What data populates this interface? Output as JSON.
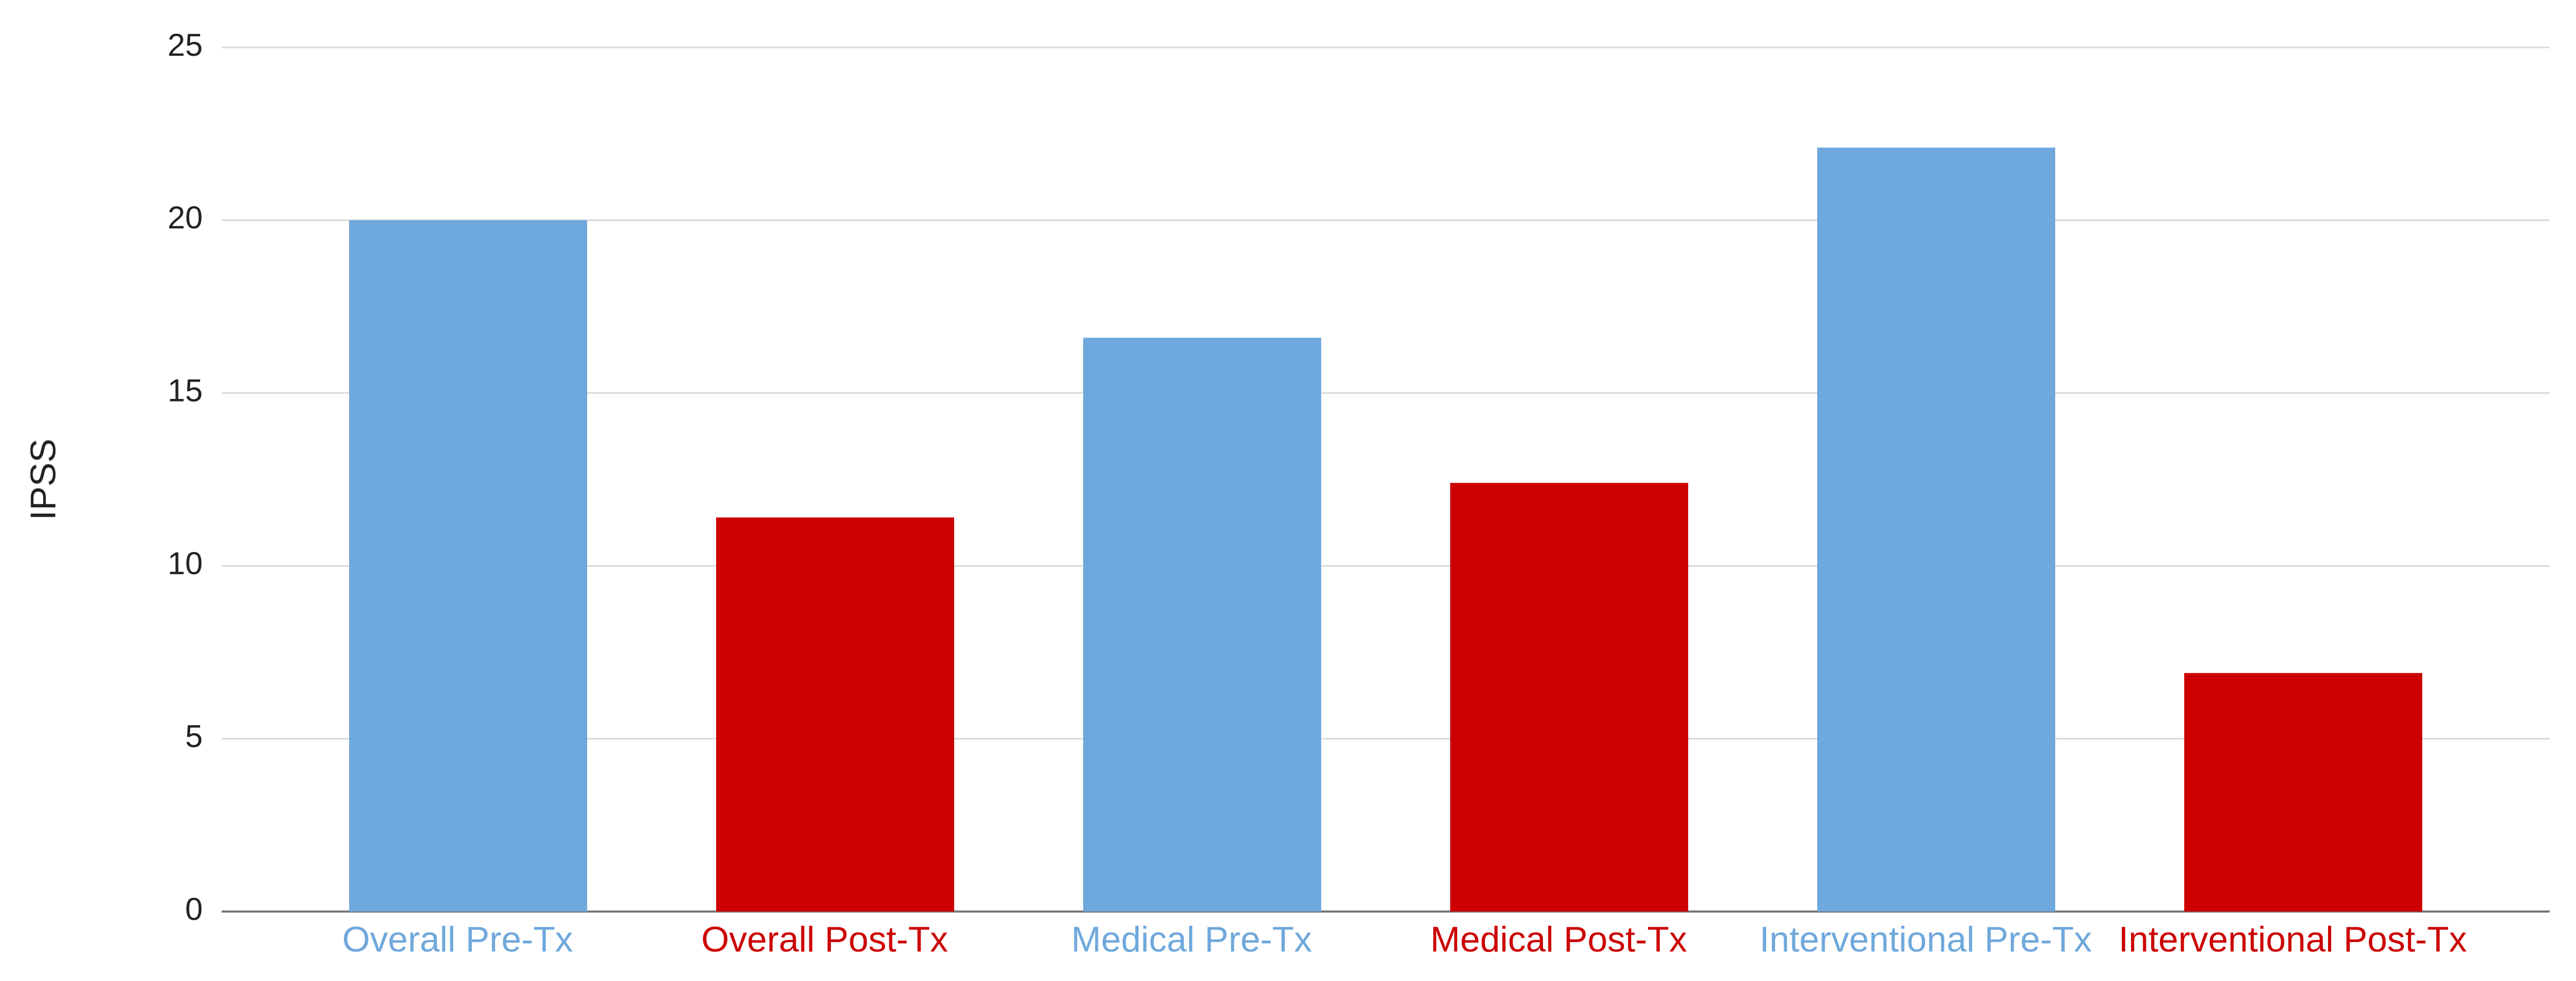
{
  "chart_data": {
    "type": "bar",
    "y_label": "IPSS",
    "categories": [
      "Overall Pre-Tx",
      "Overall Post-Tx",
      "Medical Pre-Tx",
      "Medical Post-Tx",
      "Interventional Pre-Tx",
      "Interventional Post-Tx"
    ],
    "values": [
      20,
      11.4,
      16.6,
      12.4,
      22.1,
      6.9
    ],
    "colors": [
      "#6fa8dc",
      "#cc0000",
      "#6fa8dc",
      "#cc0000",
      "#6fa8dc",
      "#cc0000"
    ],
    "ylim": [
      0,
      25
    ],
    "yticks": [
      0,
      5,
      10,
      15,
      20,
      25
    ],
    "grid": true
  }
}
